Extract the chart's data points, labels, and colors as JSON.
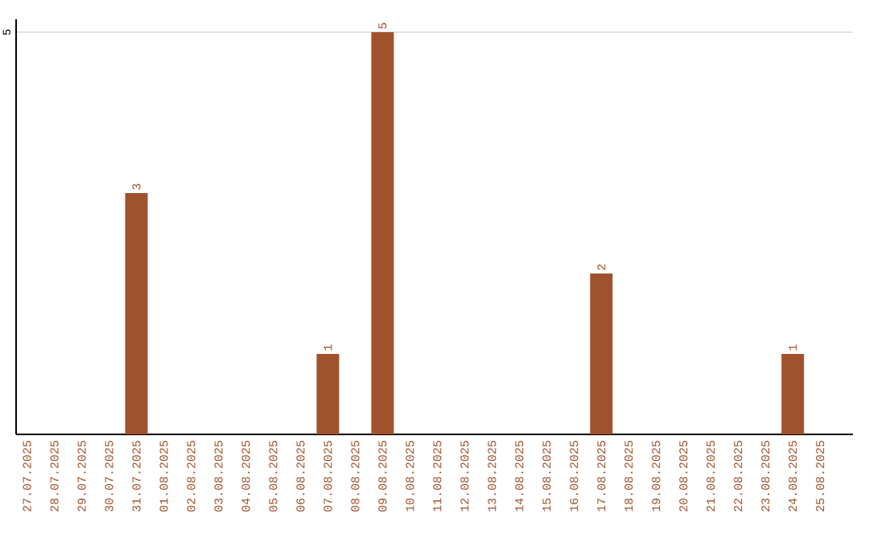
{
  "chart_data": {
    "type": "bar",
    "categories": [
      "27.07.2025",
      "28.07.2025",
      "29.07.2025",
      "30.07.2025",
      "31.07.2025",
      "01.08.2025",
      "02.08.2025",
      "03.08.2025",
      "04.08.2025",
      "05.08.2025",
      "06.08.2025",
      "07.08.2025",
      "08.08.2025",
      "09.08.2025",
      "10.08.2025",
      "11.08.2025",
      "12.08.2025",
      "13.08.2025",
      "14.08.2025",
      "15.08.2025",
      "16.08.2025",
      "17.08.2025",
      "18.08.2025",
      "19.08.2025",
      "20.08.2025",
      "21.08.2025",
      "22.08.2025",
      "23.08.2025",
      "24.08.2025",
      "25.08.2025"
    ],
    "values": [
      null,
      null,
      null,
      null,
      3,
      null,
      null,
      null,
      null,
      null,
      null,
      1,
      null,
      5,
      null,
      null,
      null,
      null,
      null,
      null,
      null,
      2,
      null,
      null,
      null,
      null,
      null,
      null,
      1,
      null
    ],
    "color": "#a0522d",
    "ylim": [
      0,
      5.16
    ],
    "yticks": [
      5
    ],
    "grid": "y",
    "data_labels": true
  }
}
